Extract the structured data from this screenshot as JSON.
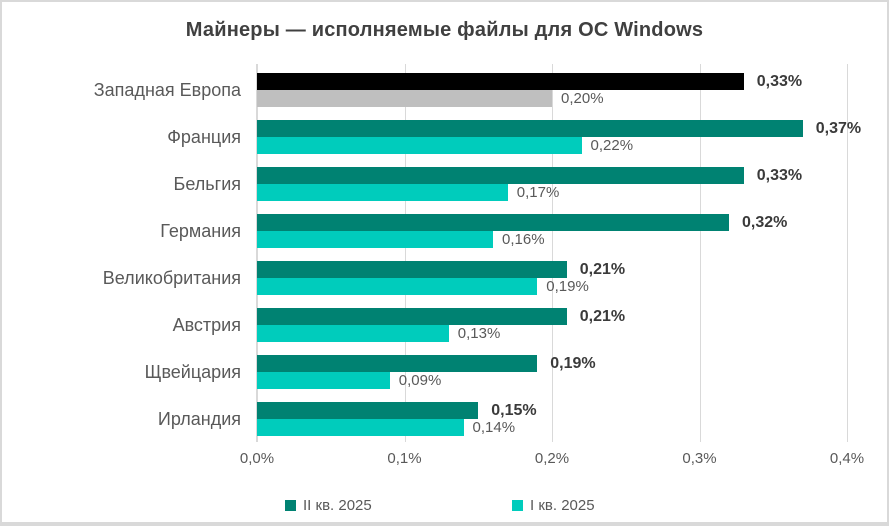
{
  "title": "Майнеры — исполняемые файлы для ОС Windows",
  "colors": {
    "series_q2": "#008272",
    "series_q1": "#00CCBC",
    "highlight_q2": "#000000",
    "highlight_q1": "#BFBFBF",
    "gridline": "#D9D9D9",
    "label_bold": "#3A3A3A",
    "label_gray": "#595959",
    "title_text": "#404040"
  },
  "chart_data": {
    "type": "bar",
    "orientation": "horizontal",
    "title": "Майнеры — исполняемые файлы для ОС Windows",
    "categories": [
      "Западная Европа",
      "Франция",
      "Бельгия",
      "Германия",
      "Великобритания",
      "Австрия",
      "Щвейцария",
      "Ирландия"
    ],
    "series": [
      {
        "name": "II кв. 2025",
        "color": "#008272",
        "values": [
          0.33,
          0.37,
          0.33,
          0.32,
          0.21,
          0.21,
          0.19,
          0.15
        ],
        "labels": [
          "0,33%",
          "0,37%",
          "0,33%",
          "0,32%",
          "0,21%",
          "0,21%",
          "0,19%",
          "0,15%"
        ]
      },
      {
        "name": "I кв. 2025",
        "color": "#00CCBC",
        "values": [
          0.2,
          0.22,
          0.17,
          0.16,
          0.19,
          0.13,
          0.09,
          0.14
        ],
        "labels": [
          "0,20%",
          "0,22%",
          "0,17%",
          "0,16%",
          "0,19%",
          "0,13%",
          "0,09%",
          "0,14%"
        ]
      }
    ],
    "highlight": {
      "category": "Западная Европа",
      "series_q2_color": "#000000",
      "series_q1_color": "#BFBFBF"
    },
    "xlim": [
      0,
      0.4
    ],
    "x_ticks": [
      "0,0%",
      "0,1%",
      "0,2%",
      "0,3%",
      "0,4%"
    ],
    "grid": true,
    "legend_position": "bottom",
    "legend": [
      {
        "label": "II кв. 2025",
        "color": "#008272"
      },
      {
        "label": "I кв. 2025",
        "color": "#00CCBC"
      }
    ]
  }
}
